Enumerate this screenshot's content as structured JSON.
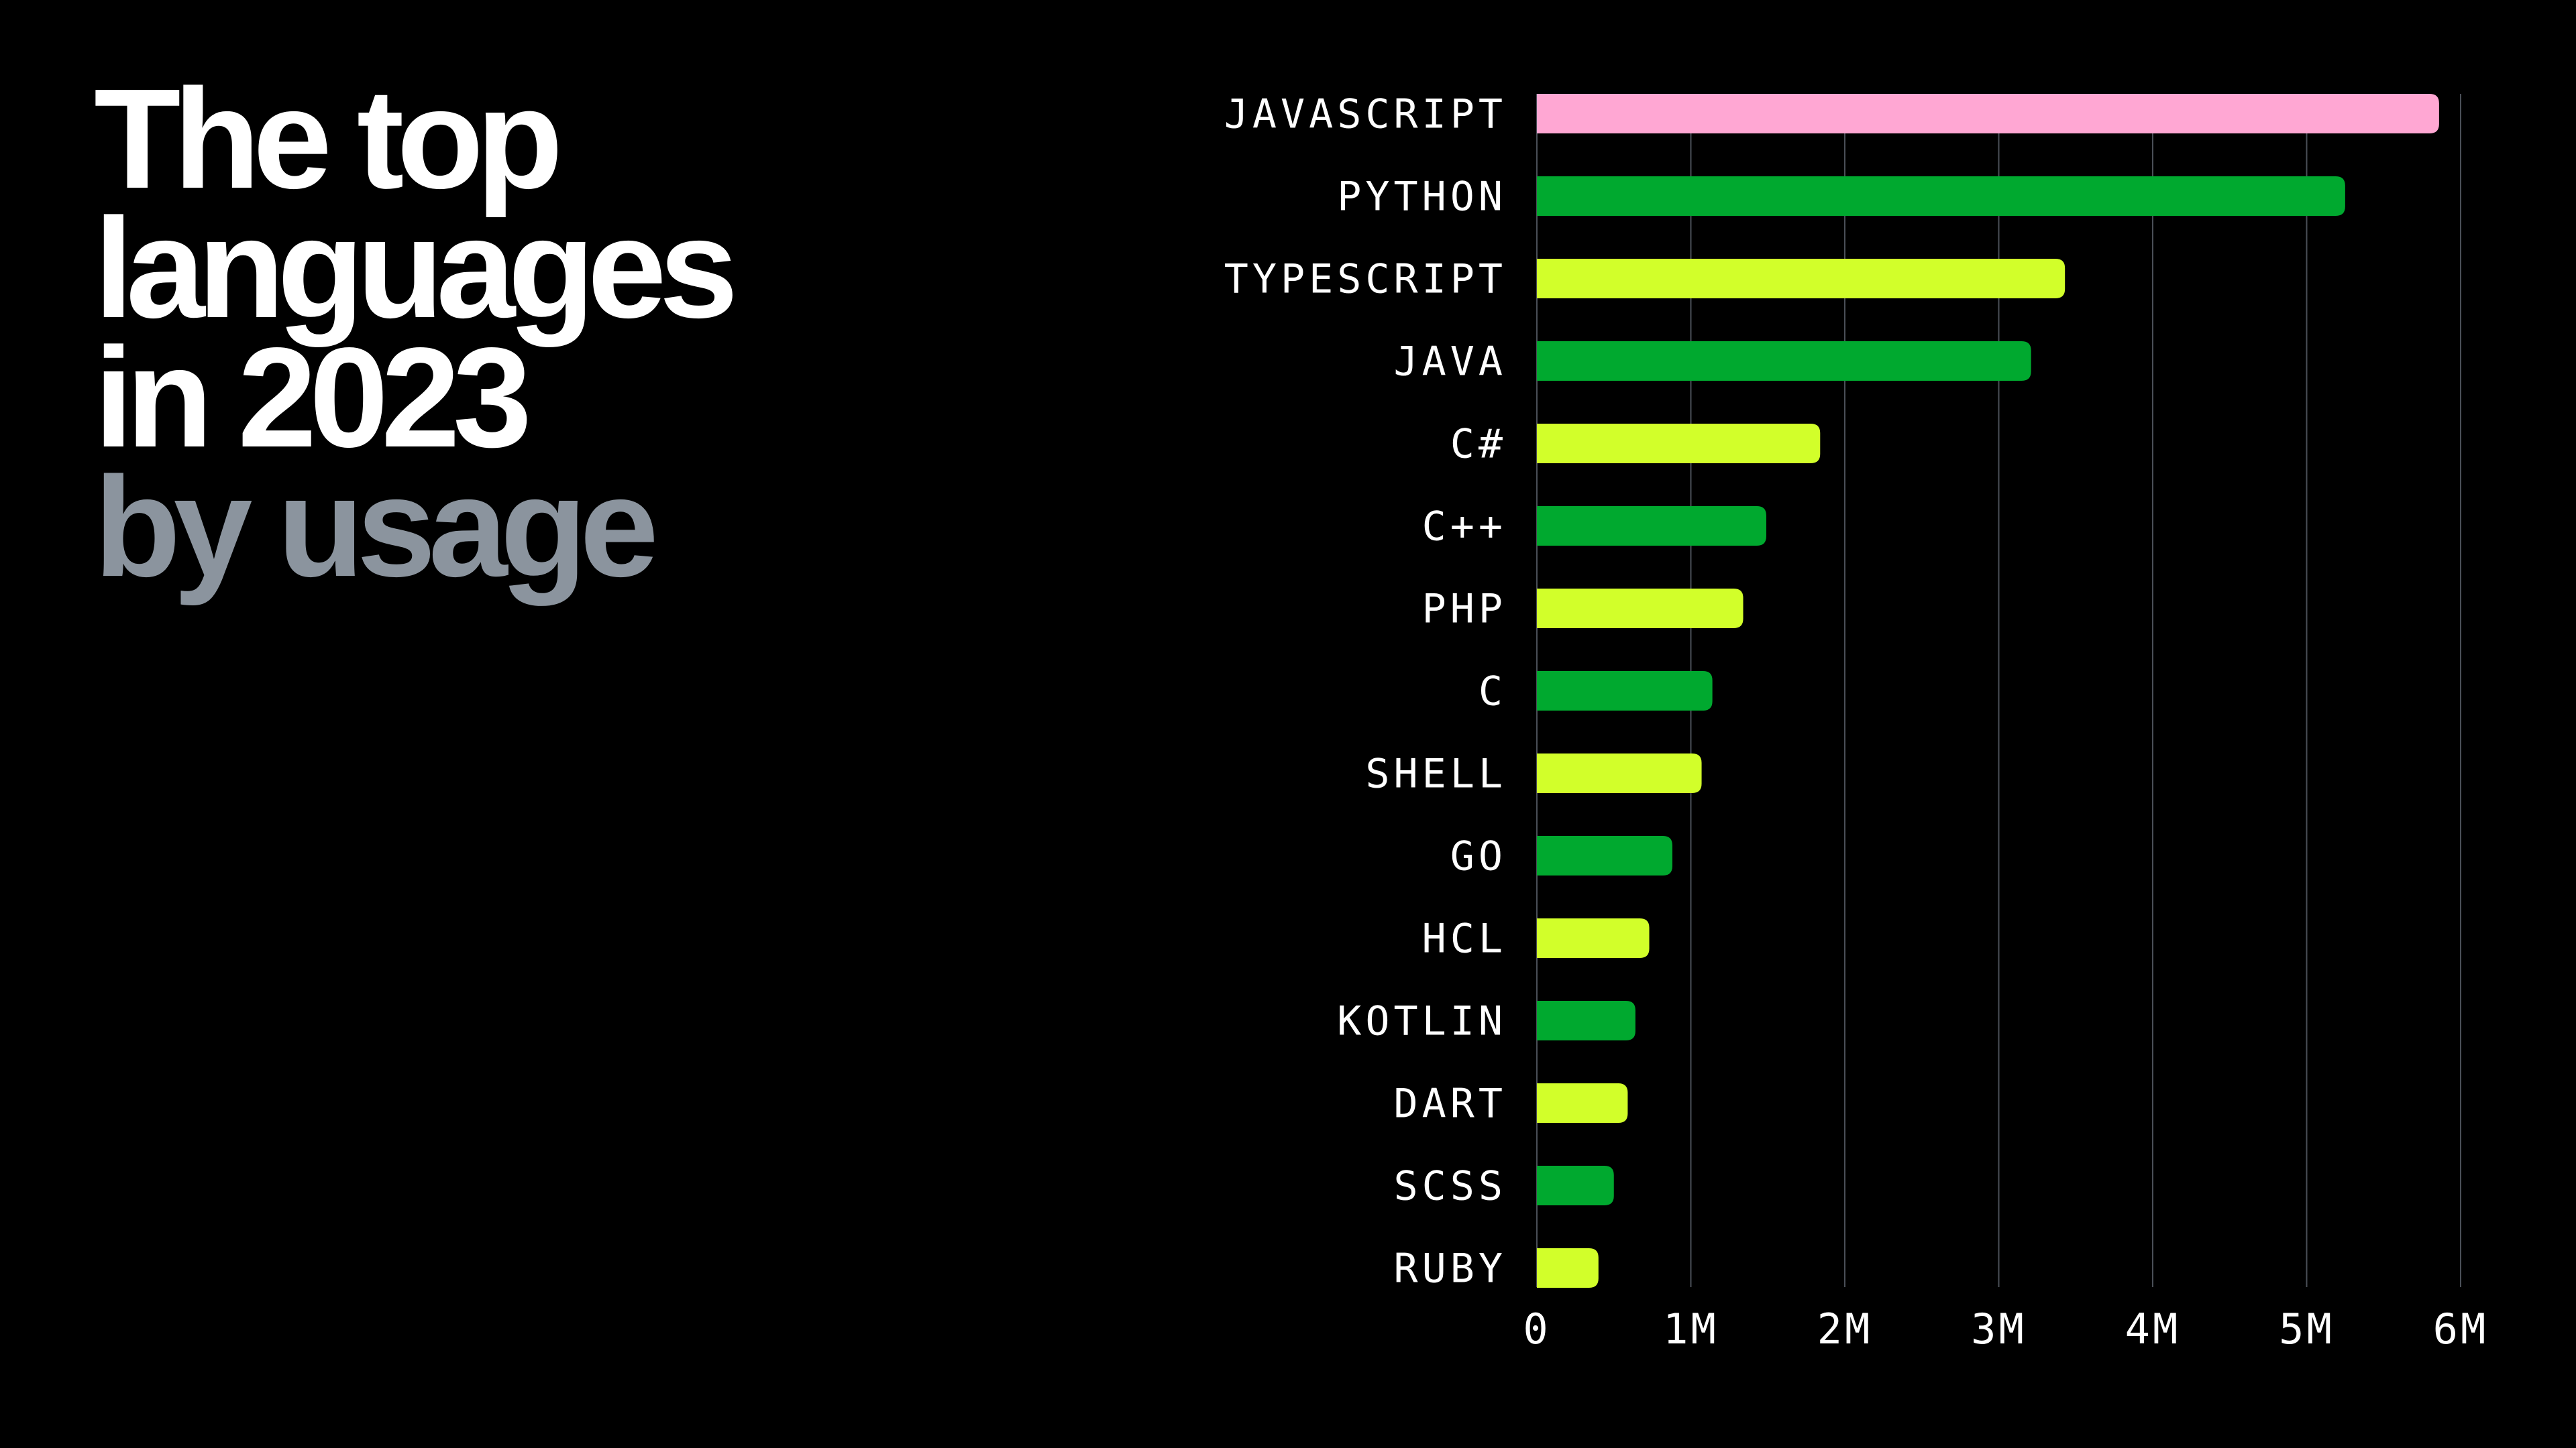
{
  "title": {
    "line1": "The top",
    "line2": "languages",
    "line3": "in 2023",
    "line4": "by usage"
  },
  "colors": {
    "pink": "#ffa7d3",
    "green": "#00a92f",
    "lime": "#d2ff2a",
    "grid": "#4a4f57",
    "subtitle": "#8b949e"
  },
  "chart_data": {
    "type": "bar",
    "orientation": "horizontal",
    "categories": [
      "JAVASCRIPT",
      "PYTHON",
      "TYPESCRIPT",
      "JAVA",
      "C#",
      "C++",
      "PHP",
      "C",
      "SHELL",
      "GO",
      "HCL",
      "KOTLIN",
      "DART",
      "SCSS",
      "RUBY"
    ],
    "values": [
      5860000,
      5250000,
      3430000,
      3210000,
      1840000,
      1490000,
      1340000,
      1140000,
      1070000,
      880000,
      730000,
      640000,
      590000,
      500000,
      400000
    ],
    "bar_colors": [
      "#ffa7d3",
      "#00a92f",
      "#d2ff2a",
      "#00a92f",
      "#d2ff2a",
      "#00a92f",
      "#d2ff2a",
      "#00a92f",
      "#d2ff2a",
      "#00a92f",
      "#d2ff2a",
      "#00a92f",
      "#d2ff2a",
      "#00a92f",
      "#d2ff2a"
    ],
    "xlim": [
      0,
      6000000
    ],
    "x_ticks": [
      0,
      1000000,
      2000000,
      3000000,
      4000000,
      5000000,
      6000000
    ],
    "x_tick_labels": [
      "0",
      "1M",
      "2M",
      "3M",
      "4M",
      "5M",
      "6M"
    ],
    "grid": "vertical",
    "title": "",
    "xlabel": "",
    "ylabel": ""
  }
}
